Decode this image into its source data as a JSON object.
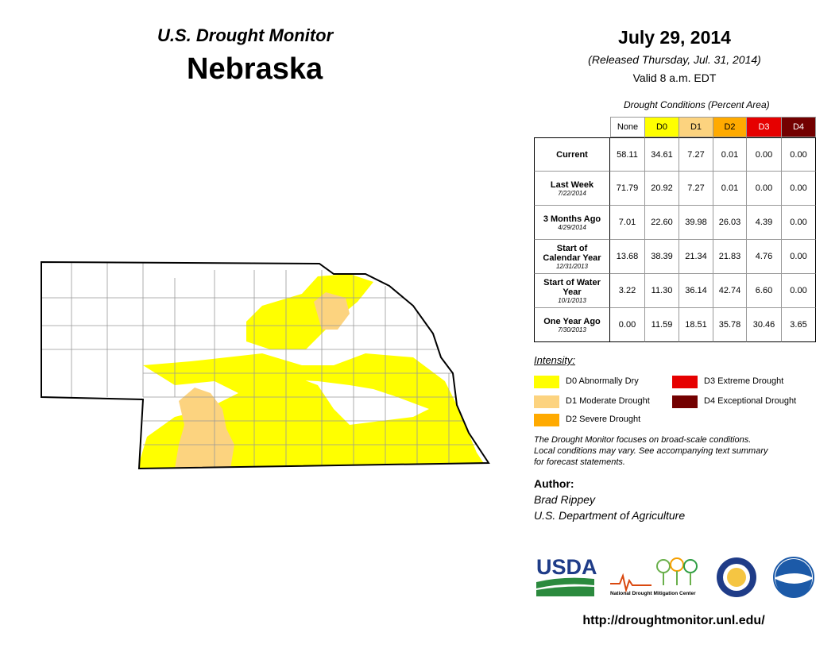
{
  "header": {
    "title": "U.S. Drought Monitor",
    "state": "Nebraska",
    "date": "July 29, 2014",
    "released": "(Released Thursday, Jul. 31, 2014)",
    "valid": "Valid 8 a.m. EDT"
  },
  "table": {
    "caption": "Drought Conditions (Percent Area)",
    "columns": [
      {
        "label": "None",
        "color": "#ffffff",
        "text_color": "#000000"
      },
      {
        "label": "D0",
        "color": "#ffff00",
        "text_color": "#000000"
      },
      {
        "label": "D1",
        "color": "#fcd37f",
        "text_color": "#000000"
      },
      {
        "label": "D2",
        "color": "#ffaa00",
        "text_color": "#000000"
      },
      {
        "label": "D3",
        "color": "#e60000",
        "text_color": "#ffffff"
      },
      {
        "label": "D4",
        "color": "#730000",
        "text_color": "#ffffff"
      }
    ],
    "rows": [
      {
        "label": "Current",
        "values": [
          "58.11",
          "34.61",
          "7.27",
          "0.01",
          "0.00",
          "0.00"
        ]
      },
      {
        "label": "Last Week",
        "date": "7/22/2014",
        "values": [
          "71.79",
          "20.92",
          "7.27",
          "0.01",
          "0.00",
          "0.00"
        ]
      },
      {
        "label": "3 Months Ago",
        "date": "4/29/2014",
        "values": [
          "7.01",
          "22.60",
          "39.98",
          "26.03",
          "4.39",
          "0.00"
        ]
      },
      {
        "label": "Start of Calendar Year",
        "date": "12/31/2013",
        "values": [
          "13.68",
          "38.39",
          "21.34",
          "21.83",
          "4.76",
          "0.00"
        ]
      },
      {
        "label": "Start of Water Year",
        "date": "10/1/2013",
        "values": [
          "3.22",
          "11.30",
          "36.14",
          "42.74",
          "6.60",
          "0.00"
        ]
      },
      {
        "label": "One Year Ago",
        "date": "7/30/2013",
        "values": [
          "0.00",
          "11.59",
          "18.51",
          "35.78",
          "30.46",
          "3.65"
        ]
      }
    ]
  },
  "legend": {
    "title": "Intensity:",
    "items": [
      {
        "label": "D0 Abnormally Dry",
        "color": "#ffff00"
      },
      {
        "label": "D1 Moderate Drought",
        "color": "#fcd37f"
      },
      {
        "label": "D2 Severe Drought",
        "color": "#ffaa00"
      },
      {
        "label": "D3 Extreme Drought",
        "color": "#e60000"
      },
      {
        "label": "D4 Exceptional Drought",
        "color": "#730000"
      }
    ]
  },
  "note": [
    "The Drought Monitor focuses on broad-scale conditions.",
    "Local conditions may vary. See accompanying text summary",
    "for forecast statements."
  ],
  "author": {
    "heading": "Author:",
    "name": "Brad Rippey",
    "organization": "U.S. Department of Agriculture"
  },
  "logos": {
    "usda": "USDA",
    "ndmc": "National Drought Mitigation Center"
  },
  "url": "http://droughtmonitor.unl.edu/"
}
